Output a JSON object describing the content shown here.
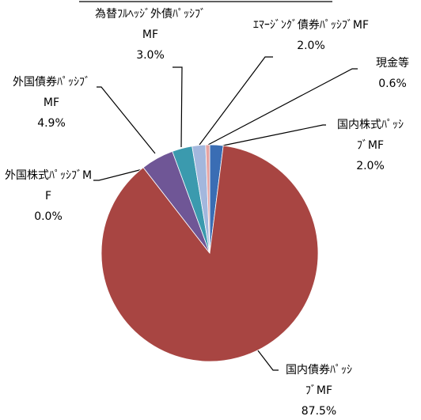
{
  "chart_data": {
    "type": "pie",
    "categories": [
      "国内株式ﾊﾟｯｼﾌﾞMF",
      "国内債券ﾊﾟｯｼﾌﾞMF",
      "外国株式ﾊﾟｯｼﾌﾞMF",
      "外国債券ﾊﾟｯｼﾌﾞMF",
      "為替ﾌﾙﾍｯｼﾞ外債ﾊﾟｯｼﾌﾞMF",
      "ｴﾏｰｼﾞﾝｸﾞ債券ﾊﾟｯｼﾌﾞMF",
      "現金等"
    ],
    "values": [
      2.0,
      87.5,
      0.0,
      4.9,
      3.0,
      2.0,
      0.6
    ],
    "value_labels": [
      "2.0%",
      "87.5%",
      "0.0%",
      "4.9%",
      "3.0%",
      "2.0%",
      "0.6%"
    ],
    "colors": [
      "#3a6db4",
      "#a84542",
      "#8aa54c",
      "#6f5696",
      "#3b9aae",
      "#a3b7dd",
      "#e6a3a2"
    ]
  }
}
